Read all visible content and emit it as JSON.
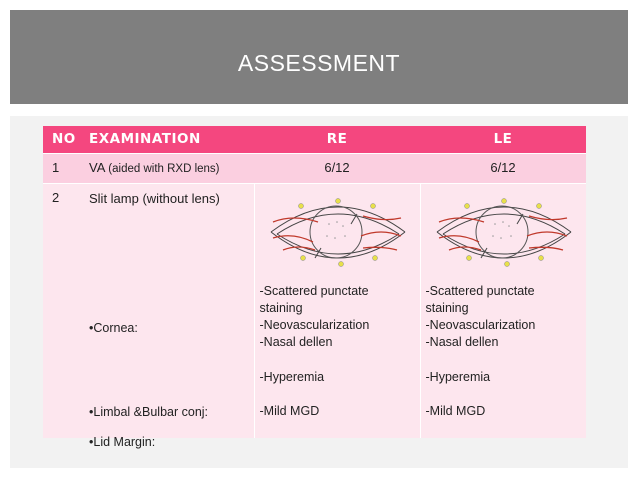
{
  "slide": {
    "title": "ASSESSMENT"
  },
  "table": {
    "headers": {
      "no": "NO",
      "examination": "EXAMINATION",
      "re": "RE",
      "le": "LE"
    },
    "row1": {
      "no": "1",
      "exam_main": "VA",
      "exam_note": "(aided with RXD lens)",
      "re": "6/12",
      "le": "6/12"
    },
    "row2": {
      "no": "2",
      "exam_main": "Slit lamp (without lens)",
      "bullet_cornea": "•Cornea:",
      "bullet_limbal": "•Limbal &Bulbar conj:",
      "bullet_lid": "•Lid Margin:",
      "re": {
        "cornea_lines": [
          "-Scattered punctate",
          "staining",
          "-Neovascularization",
          "-Nasal dellen"
        ],
        "conj": "-Hyperemia",
        "lid": "-Mild MGD"
      },
      "le": {
        "cornea_lines": [
          "-Scattered punctate",
          "staining",
          "-Neovascularization",
          "-Nasal dellen"
        ],
        "conj": "-Hyperemia",
        "lid": "-Mild MGD"
      }
    }
  },
  "colors": {
    "title_bar": "#7f7f7f",
    "header": "#f4477f",
    "row1": "#fbcfe0",
    "row2": "#fde6ee",
    "vessel": "#c0392b",
    "gland": "#e8e04a"
  },
  "icons": [
    "eye-sketch-re-icon",
    "eye-sketch-le-icon"
  ]
}
